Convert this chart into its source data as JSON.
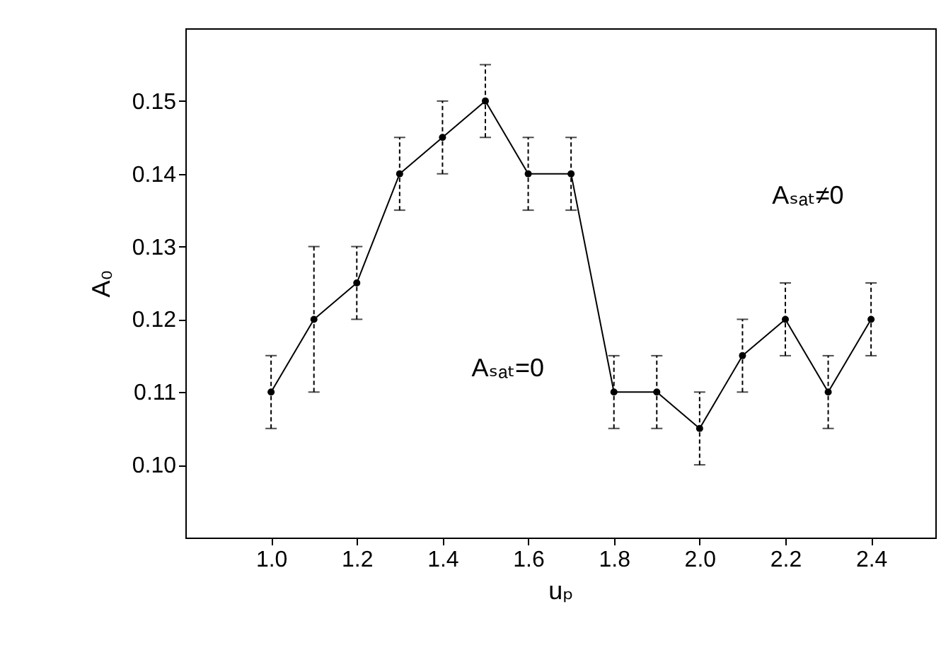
{
  "chart_data": {
    "type": "line",
    "xlabel": "uₚ",
    "ylabel": "A₀",
    "x": [
      1.0,
      1.1,
      1.2,
      1.3,
      1.4,
      1.5,
      1.6,
      1.7,
      1.8,
      1.9,
      2.0,
      2.1,
      2.2,
      2.3,
      2.4
    ],
    "series": [
      {
        "color": "#000000",
        "values": [
          0.11,
          0.12,
          0.125,
          0.14,
          0.145,
          0.15,
          0.14,
          0.14,
          0.11,
          0.11,
          0.105,
          0.115,
          0.12,
          0.11,
          0.12
        ],
        "errors": [
          0.005,
          0.01,
          0.005,
          0.005,
          0.005,
          0.005,
          0.005,
          0.005,
          0.005,
          0.005,
          0.005,
          0.005,
          0.005,
          0.005,
          0.005
        ]
      }
    ],
    "xlim": [
      0.8,
      2.55
    ],
    "xticks": [
      {
        "value": 1,
        "label": "1.0"
      },
      1.2,
      1.4,
      1.6,
      1.8,
      {
        "value": 2,
        "label": "2.0"
      },
      2.2,
      2.4
    ],
    "ylim": [
      0.09,
      0.16
    ],
    "yticks": [
      {
        "value": 0.1,
        "label": "0.10"
      },
      0.11,
      0.12,
      0.13,
      0.14,
      0.15
    ],
    "annotations": [
      "Aₛₐₜ≠0",
      "Aₛₐₜ=0"
    ],
    "grid": false,
    "marker": "circle",
    "line_style": "solid"
  }
}
